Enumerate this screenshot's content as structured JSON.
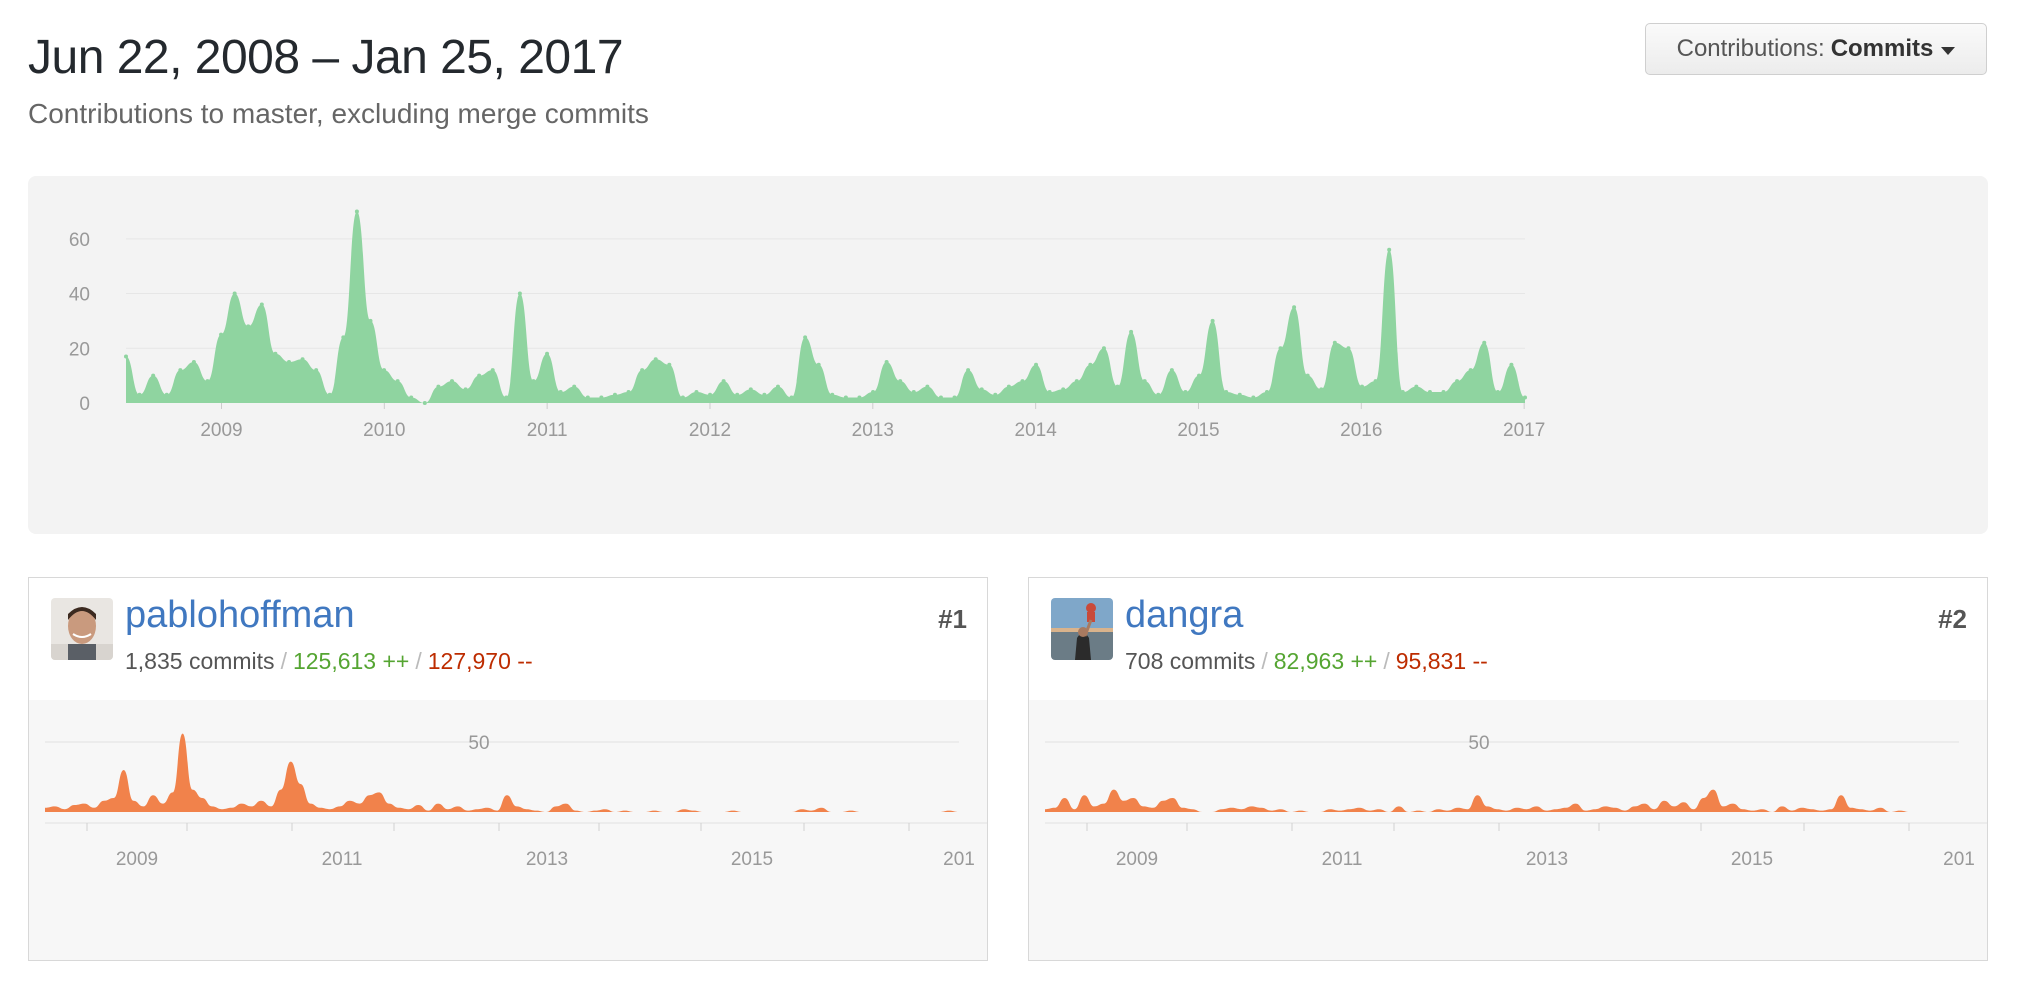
{
  "header": {
    "title": "Jun 22, 2008 – Jan 25, 2017",
    "subtitle": "Contributions to master, excluding merge commits",
    "contrib_label": "Contributions:",
    "contrib_value": "Commits"
  },
  "colors": {
    "main_area": "#8fd4a0",
    "user_area": "#f1824b",
    "link": "#4078c0",
    "additions": "#55a532",
    "deletions": "#bd2c00"
  },
  "chart_data": [
    {
      "type": "area",
      "title": "",
      "xlabel": "",
      "ylabel": "",
      "ylim": [
        0,
        72
      ],
      "y_ticks": [
        0,
        20,
        40,
        60
      ],
      "x_tick_labels": [
        "2009",
        "2010",
        "2011",
        "2012",
        "2013",
        "2014",
        "2015",
        "2016",
        "2017"
      ],
      "grid": true,
      "series": [
        {
          "x": [
            "2008-06-22",
            "2008-07-22",
            "2008-08-22",
            "2008-09-22",
            "2008-10-22",
            "2008-11-22",
            "2008-12-22",
            "2009-01-22",
            "2009-02-22",
            "2009-03-22",
            "2009-04-22",
            "2009-05-22",
            "2009-06-22",
            "2009-07-22",
            "2009-08-22",
            "2009-09-22",
            "2009-10-22",
            "2009-11-22",
            "2009-12-22",
            "2010-01-22",
            "2010-02-22",
            "2010-03-22",
            "2010-04-22",
            "2010-05-22",
            "2010-06-22",
            "2010-07-22",
            "2010-08-22",
            "2010-09-22",
            "2010-10-22",
            "2010-11-22",
            "2010-12-22",
            "2011-01-22",
            "2011-02-22",
            "2011-03-22",
            "2011-04-22",
            "2011-05-22",
            "2011-06-22",
            "2011-07-22",
            "2011-08-22",
            "2011-09-22",
            "2011-10-22",
            "2011-11-22",
            "2011-12-22",
            "2012-01-22",
            "2012-02-22",
            "2012-03-22",
            "2012-04-22",
            "2012-05-22",
            "2012-06-22",
            "2012-07-22",
            "2012-08-22",
            "2012-09-22",
            "2012-10-22",
            "2012-11-22",
            "2012-12-22",
            "2013-01-22",
            "2013-02-22",
            "2013-03-22",
            "2013-04-22",
            "2013-05-22",
            "2013-06-22",
            "2013-07-22",
            "2013-08-22",
            "2013-09-22",
            "2013-10-22",
            "2013-11-22",
            "2013-12-22",
            "2014-01-22",
            "2014-02-22",
            "2014-03-22",
            "2014-04-22",
            "2014-05-22",
            "2014-06-22",
            "2014-07-22",
            "2014-08-22",
            "2014-09-22",
            "2014-10-22",
            "2014-11-22",
            "2014-12-22",
            "2015-01-22",
            "2015-02-22",
            "2015-03-22",
            "2015-04-22",
            "2015-05-22",
            "2015-06-22",
            "2015-07-22",
            "2015-08-22",
            "2015-09-22",
            "2015-10-22",
            "2015-11-22",
            "2015-12-22",
            "2016-01-22",
            "2016-02-22",
            "2016-03-22",
            "2016-04-22",
            "2016-05-22",
            "2016-06-22",
            "2016-07-22",
            "2016-08-22",
            "2016-09-22",
            "2016-10-22",
            "2016-11-22",
            "2016-12-22",
            "2017-01-22"
          ],
          "values": [
            17,
            3,
            10,
            3,
            12,
            15,
            8,
            25,
            40,
            28,
            36,
            18,
            15,
            16,
            12,
            3,
            24,
            70,
            30,
            12,
            8,
            2,
            0,
            6,
            8,
            5,
            10,
            12,
            2,
            40,
            8,
            18,
            4,
            6,
            2,
            2,
            3,
            4,
            12,
            16,
            14,
            2,
            4,
            3,
            8,
            3,
            5,
            3,
            6,
            2,
            24,
            14,
            3,
            2,
            2,
            4,
            15,
            8,
            4,
            6,
            2,
            2,
            12,
            5,
            3,
            6,
            8,
            14,
            4,
            5,
            8,
            14,
            20,
            6,
            26,
            8,
            3,
            12,
            4,
            10,
            30,
            4,
            3,
            2,
            4,
            20,
            35,
            10,
            5,
            22,
            20,
            6,
            8,
            56,
            4,
            6,
            4,
            4,
            8,
            12,
            22,
            4,
            14,
            2
          ]
        }
      ]
    },
    {
      "type": "area",
      "title": "",
      "ylim": [
        0,
        60
      ],
      "y_ticks": [
        50
      ],
      "x_tick_labels": [
        "2009",
        "2011",
        "2013",
        "2015",
        "201"
      ],
      "series": [
        {
          "name": "pablohoffman",
          "values": [
            3,
            4,
            2,
            5,
            6,
            3,
            8,
            10,
            30,
            8,
            4,
            12,
            6,
            14,
            56,
            16,
            10,
            4,
            2,
            3,
            6,
            4,
            8,
            4,
            16,
            36,
            20,
            6,
            3,
            2,
            4,
            8,
            6,
            12,
            14,
            6,
            3,
            2,
            5,
            1,
            6,
            2,
            4,
            1,
            2,
            3,
            1,
            12,
            4,
            2,
            1,
            0,
            4,
            6,
            1,
            0,
            1,
            2,
            0,
            1,
            0,
            0,
            1,
            0,
            0,
            2,
            1,
            0,
            0,
            0,
            1,
            0,
            0,
            0,
            0,
            0,
            0,
            2,
            1,
            3,
            0,
            0,
            1,
            0,
            0,
            0,
            0,
            0,
            0,
            0,
            0,
            0,
            1,
            0
          ]
        }
      ]
    },
    {
      "type": "area",
      "title": "",
      "ylim": [
        0,
        60
      ],
      "y_ticks": [
        50
      ],
      "x_tick_labels": [
        "2009",
        "2011",
        "2013",
        "2015",
        "201"
      ],
      "series": [
        {
          "name": "dangra",
          "values": [
            2,
            3,
            10,
            2,
            12,
            4,
            6,
            16,
            8,
            10,
            4,
            3,
            8,
            10,
            3,
            2,
            0,
            0,
            2,
            3,
            2,
            4,
            3,
            1,
            2,
            0,
            1,
            0,
            0,
            2,
            1,
            2,
            3,
            1,
            2,
            0,
            4,
            0,
            1,
            0,
            2,
            1,
            3,
            2,
            12,
            4,
            2,
            1,
            3,
            2,
            4,
            1,
            2,
            3,
            6,
            1,
            2,
            4,
            3,
            1,
            4,
            6,
            2,
            8,
            4,
            7,
            2,
            10,
            16,
            4,
            6,
            2,
            1,
            2,
            0,
            4,
            1,
            3,
            2,
            1,
            2,
            12,
            3,
            2,
            1,
            3,
            0,
            1,
            0,
            0,
            0,
            0,
            0,
            0
          ]
        }
      ]
    }
  ],
  "contributors": [
    {
      "name": "pablohoffman",
      "rank": "#1",
      "commits": "1,835 commits",
      "additions": "125,613 ++",
      "deletions": "127,970 --"
    },
    {
      "name": "dangra",
      "rank": "#2",
      "commits": "708 commits",
      "additions": "82,963 ++",
      "deletions": "95,831 --"
    }
  ],
  "separator": "/"
}
